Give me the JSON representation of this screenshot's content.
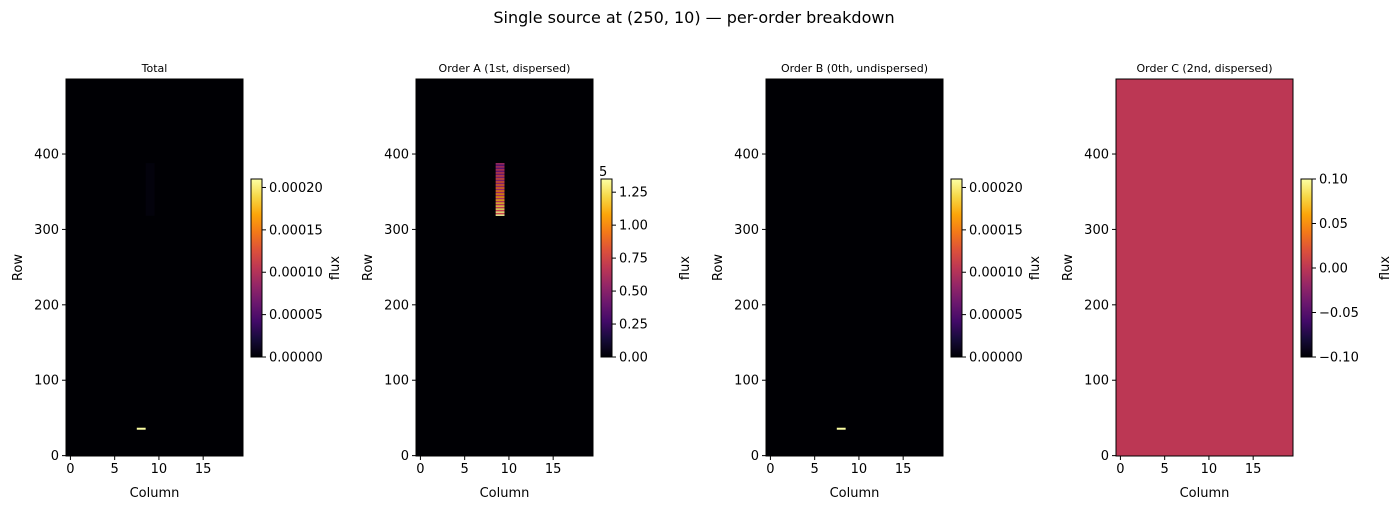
{
  "title": "Single source at (250, 10) — per-order breakdown",
  "chart_data": [
    {
      "type": "heatmap",
      "title": "Total",
      "xlabel": "Column",
      "ylabel": "Row",
      "xlim": [
        -0.5,
        19.5
      ],
      "ylim": [
        -0.5,
        499.5
      ],
      "xticks": [
        0,
        5,
        10,
        15
      ],
      "yticks": [
        0,
        100,
        200,
        300,
        400
      ],
      "colormap": "inferno",
      "background_value": 0,
      "colorbar": {
        "label": "flux",
        "range": [
          0,
          0.00021
        ],
        "ticks": [
          0,
          5e-05,
          0.0001,
          0.00015,
          0.0002
        ],
        "tick_labels": [
          "0.00000",
          "0.00005",
          "0.00010",
          "0.00015",
          "0.00020"
        ],
        "offset_label": ""
      },
      "features": [
        {
          "description": "0th-order spot",
          "col": 8,
          "rows": [
            35,
            37
          ],
          "value": 0.00021
        },
        {
          "description": "faint dispersed trace",
          "col": 9,
          "rows": [
            318,
            388
          ],
          "value": 3e-06
        }
      ]
    },
    {
      "type": "heatmap",
      "title": "Order A (1st, dispersed)",
      "xlabel": "Column",
      "ylabel": "Row",
      "xlim": [
        -0.5,
        19.5
      ],
      "ylim": [
        -0.5,
        499.5
      ],
      "xticks": [
        0,
        5,
        10,
        15
      ],
      "yticks": [
        0,
        100,
        200,
        300,
        400
      ],
      "colormap": "inferno",
      "background_value": 0,
      "colorbar": {
        "label": "flux",
        "range": [
          0,
          1.35
        ],
        "ticks": [
          0,
          0.25,
          0.5,
          0.75,
          1.0,
          1.25
        ],
        "tick_labels": [
          "0.00",
          "0.25",
          "0.50",
          "0.75",
          "1.00",
          "1.25"
        ],
        "offset_label": "5"
      },
      "features": [
        {
          "description": "dispersed trace (alternating bands)",
          "col": 9,
          "rows": [
            318,
            388
          ],
          "value_range": [
            0.55,
            1.35
          ]
        }
      ]
    },
    {
      "type": "heatmap",
      "title": "Order B (0th, undispersed)",
      "xlabel": "Column",
      "ylabel": "Row",
      "xlim": [
        -0.5,
        19.5
      ],
      "ylim": [
        -0.5,
        499.5
      ],
      "xticks": [
        0,
        5,
        10,
        15
      ],
      "yticks": [
        0,
        100,
        200,
        300,
        400
      ],
      "colormap": "inferno",
      "background_value": 0,
      "colorbar": {
        "label": "flux",
        "range": [
          0,
          0.00021
        ],
        "ticks": [
          0,
          5e-05,
          0.0001,
          0.00015,
          0.0002
        ],
        "tick_labels": [
          "0.00000",
          "0.00005",
          "0.00010",
          "0.00015",
          "0.00020"
        ],
        "offset_label": ""
      },
      "features": [
        {
          "description": "0th-order spot",
          "col": 8,
          "rows": [
            35,
            37
          ],
          "value": 0.00021
        }
      ]
    },
    {
      "type": "heatmap",
      "title": "Order C (2nd, dispersed)",
      "xlabel": "Column",
      "ylabel": "Row",
      "xlim": [
        -0.5,
        19.5
      ],
      "ylim": [
        -0.5,
        499.5
      ],
      "xticks": [
        0,
        5,
        10,
        15
      ],
      "yticks": [
        0,
        100,
        200,
        300,
        400
      ],
      "colormap": "inferno",
      "background_value": 0,
      "colorbar": {
        "label": "flux",
        "range": [
          -0.1,
          0.1
        ],
        "ticks": [
          -0.1,
          -0.05,
          0,
          0.05,
          0.1
        ],
        "tick_labels": [
          "−0.10",
          "−0.05",
          "0.00",
          "0.05",
          "0.10"
        ],
        "offset_label": ""
      },
      "features": []
    }
  ]
}
